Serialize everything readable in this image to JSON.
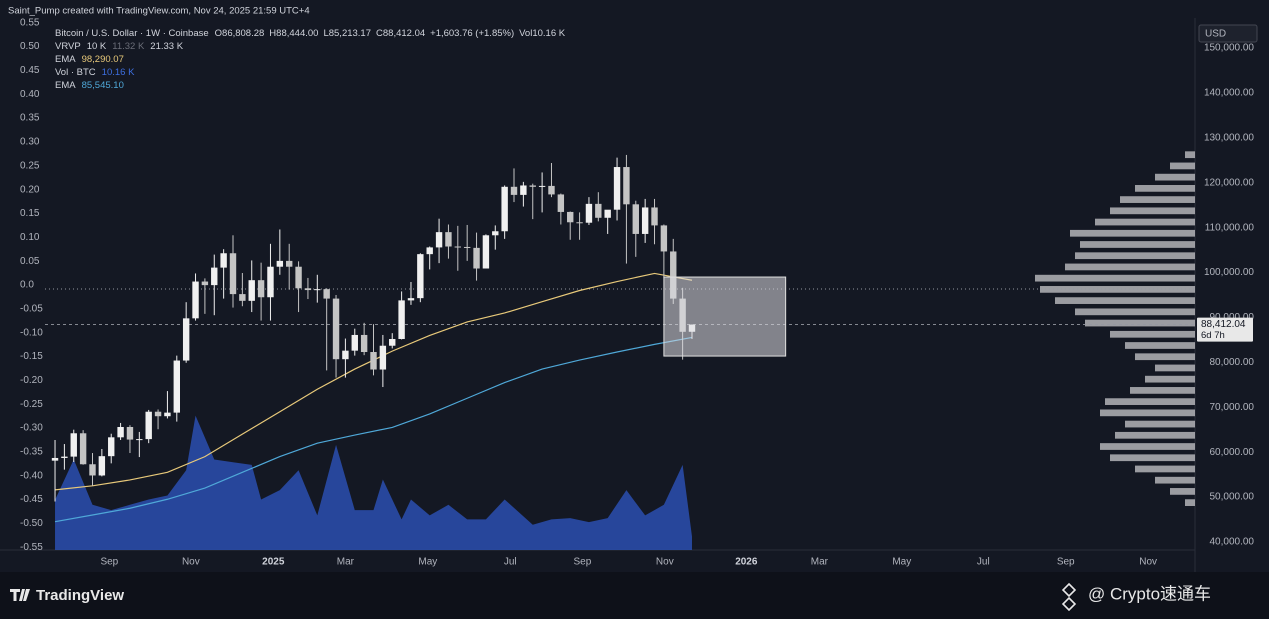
{
  "caption": "Saint_Pump created with TradingView.com, Nov 24, 2025 21:59 UTC+4",
  "chart_data": {
    "type": "candlestick",
    "title": "Bitcoin / U.S. Dollar · 1W · Coinbase",
    "header_stats": [
      {
        "key": "O",
        "text": "86,808.28"
      },
      {
        "key": "H",
        "text": "88,444.00"
      },
      {
        "key": "L",
        "text": "85,213.17"
      },
      {
        "key": "C",
        "text": "88,412.04"
      }
    ],
    "change": "+1,603.76 (+1.85%)",
    "header_volume": {
      "key": "Vol",
      "text": "10.16 K"
    },
    "profile_header": {
      "name": "VRVP",
      "labels": [
        "10 K",
        "11.32 K",
        "21.33 K"
      ]
    },
    "currency": "USD",
    "last_price_label": "88,412.04",
    "countdown": "6d 7h",
    "up_color": "#f0f0f0",
    "down_color": "#c4c4c4",
    "open": [
      58100,
      58700,
      59000,
      64200,
      57300,
      54800,
      59100,
      63300,
      65600,
      62800,
      62900,
      69000,
      68000,
      68800,
      80400,
      89800,
      98000,
      97200,
      101100,
      104300,
      95200,
      93700,
      98300,
      94500,
      101300,
      102600,
      101300,
      96500,
      96100,
      96300,
      94200,
      80700,
      82600,
      86100,
      82300,
      78400,
      83700,
      85200,
      93800,
      94300,
      104100,
      105600,
      109000,
      105800,
      105700,
      105500,
      100900,
      108300,
      109200,
      119100,
      117300,
      119400,
      119100,
      119300,
      117400,
      113500,
      111200,
      111100,
      115300,
      112200,
      114000,
      123500,
      115200,
      108600,
      114500,
      110500,
      104700,
      94200,
      86808.28
    ],
    "high": [
      62700,
      61800,
      65000,
      64900,
      59800,
      60700,
      64100,
      66500,
      66000,
      64500,
      69400,
      69500,
      73600,
      81500,
      93400,
      99800,
      98700,
      104000,
      105200,
      108300,
      99900,
      102700,
      102200,
      106400,
      109600,
      106400,
      102500,
      98800,
      99500,
      96500,
      95000,
      85300,
      87500,
      88800,
      88500,
      86100,
      86500,
      95800,
      97900,
      104300,
      105800,
      112000,
      110700,
      110400,
      110600,
      108900,
      108500,
      110500,
      119400,
      123200,
      120200,
      119800,
      122300,
      124400,
      117600,
      113600,
      113400,
      116800,
      117900,
      113300,
      125600,
      126200,
      116000,
      116400,
      116400,
      110700,
      107500,
      96600,
      88444
    ],
    "low": [
      49000,
      56100,
      57800,
      57200,
      52500,
      54600,
      57500,
      62700,
      59800,
      58900,
      62000,
      65100,
      67500,
      66800,
      79900,
      89300,
      90800,
      90500,
      94200,
      92200,
      92500,
      91200,
      89300,
      89300,
      99500,
      96200,
      91200,
      94100,
      93300,
      78200,
      76600,
      76600,
      81500,
      81600,
      77100,
      74500,
      83100,
      85100,
      92800,
      93400,
      100700,
      102100,
      103100,
      100400,
      102600,
      98200,
      100900,
      105100,
      107500,
      115700,
      114700,
      111900,
      113400,
      116800,
      110700,
      107300,
      107300,
      110600,
      111400,
      108600,
      111600,
      102000,
      103500,
      106600,
      106300,
      98900,
      93000,
      80600,
      85213.17
    ],
    "close": [
      58700,
      59000,
      64200,
      57300,
      54800,
      59100,
      63300,
      65600,
      62800,
      62900,
      69000,
      68000,
      68800,
      80400,
      89800,
      98000,
      97200,
      101100,
      104300,
      95200,
      93700,
      98300,
      94500,
      101300,
      102600,
      101300,
      96500,
      96100,
      96300,
      94200,
      80700,
      82600,
      86100,
      82300,
      78400,
      83700,
      85200,
      93800,
      94300,
      104100,
      105600,
      109000,
      105800,
      105700,
      105500,
      100900,
      108300,
      109200,
      119100,
      117300,
      119400,
      119100,
      119300,
      117400,
      113500,
      111200,
      111100,
      115300,
      112200,
      114000,
      123500,
      115200,
      108600,
      114500,
      110500,
      104700,
      94200,
      86800,
      88412.04
    ],
    "xlim": [
      -1.07,
      121.7
    ],
    "xticks": [
      {
        "value": 5.8,
        "label": "Sep"
      },
      {
        "value": 14.5,
        "label": "Nov"
      },
      {
        "value": 23.3,
        "label": "2025"
      },
      {
        "value": 31,
        "label": "Mar"
      },
      {
        "value": 39.8,
        "label": "May"
      },
      {
        "value": 48.6,
        "label": "Jul"
      },
      {
        "value": 56.3,
        "label": "Sep"
      },
      {
        "value": 65.1,
        "label": "Nov"
      },
      {
        "value": 73.8,
        "label": "2026"
      },
      {
        "value": 81.6,
        "label": "Mar"
      },
      {
        "value": 90.4,
        "label": "May"
      },
      {
        "value": 99.1,
        "label": "Jul"
      },
      {
        "value": 107.9,
        "label": "Sep"
      },
      {
        "value": 116.7,
        "label": "Nov"
      }
    ],
    "ylim": [
      38200,
      156700
    ],
    "yticks": [
      {
        "value": 40000,
        "label": "40,000.00"
      },
      {
        "value": 50000,
        "label": "50,000.00"
      },
      {
        "value": 60000,
        "label": "60,000.00"
      },
      {
        "value": 70000,
        "label": "70,000.00"
      },
      {
        "value": 80000,
        "label": "80,000.00"
      },
      {
        "value": 90000,
        "label": "90,000.00"
      },
      {
        "value": 100000,
        "label": "100,000.00"
      },
      {
        "value": 110000,
        "label": "110,000.00"
      },
      {
        "value": 120000,
        "label": "120,000.00"
      },
      {
        "value": 130000,
        "label": "130,000.00"
      },
      {
        "value": 140000,
        "label": "140,000.00"
      },
      {
        "value": 150000,
        "label": "150,000.00"
      }
    ],
    "y2lim": [
      -0.556,
      0.56
    ],
    "y2ticks": [
      {
        "value": 0.55,
        "label": "0.55"
      },
      {
        "value": 0.5,
        "label": "0.50"
      },
      {
        "value": 0.45,
        "label": "0.45"
      },
      {
        "value": 0.4,
        "label": "0.40"
      },
      {
        "value": 0.35,
        "label": "0.35"
      },
      {
        "value": 0.3,
        "label": "0.30"
      },
      {
        "value": 0.25,
        "label": "0.25"
      },
      {
        "value": 0.2,
        "label": "0.20"
      },
      {
        "value": 0.15,
        "label": "0.15"
      },
      {
        "value": 0.1,
        "label": "0.10"
      },
      {
        "value": 0.05,
        "label": "0.05"
      },
      {
        "value": 0,
        "label": "0.0"
      },
      {
        "value": -0.05,
        "label": "-0.05"
      },
      {
        "value": -0.1,
        "label": "-0.10"
      },
      {
        "value": -0.15,
        "label": "-0.15"
      },
      {
        "value": -0.2,
        "label": "-0.20"
      },
      {
        "value": -0.25,
        "label": "-0.25"
      },
      {
        "value": -0.3,
        "label": "-0.30"
      },
      {
        "value": -0.35,
        "label": "-0.35"
      },
      {
        "value": -0.4,
        "label": "-0.40"
      },
      {
        "value": -0.45,
        "label": "-0.45"
      },
      {
        "value": -0.5,
        "label": "-0.50"
      },
      {
        "value": -0.55,
        "label": "-0.55"
      }
    ],
    "lines": [
      {
        "name": "EMA",
        "color": "#e8c97a",
        "value_label": "98,290.07",
        "x": [
          0,
          4,
          8,
          12,
          16,
          20,
          24,
          28,
          32,
          36,
          40,
          44,
          48,
          52,
          56,
          60,
          64,
          68
        ],
        "values": [
          51600,
          52500,
          53800,
          55500,
          59000,
          64000,
          69000,
          74000,
          78500,
          82500,
          86000,
          89000,
          91000,
          93500,
          96000,
          98000,
          99800,
          98290.07
        ]
      },
      {
        "name": "EMA",
        "color": "#4fa8d8",
        "value_label": "85,545.10",
        "x": [
          0,
          4,
          8,
          12,
          16,
          20,
          24,
          28,
          32,
          36,
          40,
          44,
          48,
          52,
          56,
          60,
          64,
          68
        ],
        "values": [
          44500,
          46000,
          47500,
          49500,
          52000,
          55500,
          59000,
          62000,
          63800,
          65500,
          68500,
          72000,
          75500,
          78500,
          80500,
          82300,
          84000,
          85545.1
        ]
      }
    ],
    "volume": {
      "name": "Vol · BTC",
      "color": "#2a4fb0",
      "legend_color": "#3d6fe0",
      "value_label": "10.16 K",
      "lim": [
        0,
        400
      ],
      "x": [
        0,
        2,
        4,
        6,
        8,
        10,
        12,
        14,
        15,
        17,
        19,
        21,
        22,
        24,
        26,
        28,
        30,
        32,
        34,
        35,
        37,
        38,
        40,
        42,
        44,
        46,
        48,
        51,
        53,
        55,
        57,
        59,
        61,
        63,
        65,
        67,
        68
      ],
      "values": [
        37.6,
        68,
        34,
        30,
        34,
        38,
        41,
        60,
        101,
        68,
        66,
        64,
        38,
        45,
        60,
        26,
        79,
        30,
        30,
        53,
        23,
        38,
        26,
        34,
        23,
        23,
        38,
        19,
        23,
        24,
        21,
        24,
        45,
        26,
        34,
        64,
        10.16
      ]
    },
    "volume_profile": {
      "color": "#c8c8cc",
      "lim": [
        0,
        250
      ],
      "prices": [
        48750,
        51250,
        53750,
        56250,
        58750,
        61250,
        63750,
        66250,
        68750,
        71250,
        73750,
        76250,
        78750,
        81250,
        83750,
        86250,
        88750,
        91250,
        93750,
        96250,
        98750,
        101250,
        103750,
        106250,
        108750,
        111250,
        113750,
        116250,
        118750,
        121250,
        123750,
        126250
      ],
      "values": [
        10,
        25,
        40,
        60,
        85,
        95,
        80,
        70,
        95,
        90,
        65,
        50,
        40,
        60,
        70,
        85,
        110,
        120,
        140,
        155,
        160,
        130,
        120,
        115,
        125,
        100,
        85,
        75,
        60,
        40,
        25,
        10
      ]
    },
    "reference_line": 96350,
    "box": {
      "x": [
        65,
        78
      ],
      "y": [
        81400,
        99000
      ]
    }
  },
  "footer": {
    "brand": "TradingView",
    "watermark": "@ Crypto速通车"
  }
}
